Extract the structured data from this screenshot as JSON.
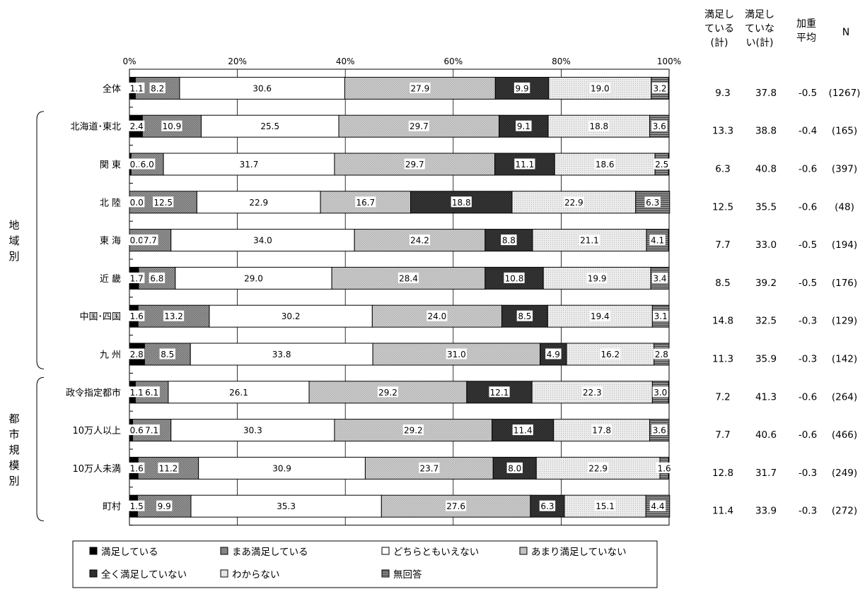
{
  "colors": {
    "s1": "#000000",
    "s2": "#8a8a8a",
    "s3": "#ffffff",
    "s4": "#c8c8c8",
    "s5": "#3c3c3c",
    "s6": "#e6e6e6",
    "s7": "#6e6e6e"
  },
  "chart_data": {
    "type": "bar",
    "orientation": "horizontal",
    "stacked": true,
    "xlim": [
      0,
      100
    ],
    "x_ticks": [
      "0%",
      "20%",
      "40%",
      "60%",
      "80%",
      "100%"
    ],
    "categories": [
      "全体",
      "北海道･東北",
      "関 東",
      "北 陸",
      "東 海",
      "近 畿",
      "中国･四国",
      "九 州",
      "政令指定都市",
      "10万人以上",
      "10万人未満",
      "町村"
    ],
    "series": [
      {
        "name": "満足している",
        "values": [
          1.1,
          2.4,
          0.3,
          0.0,
          0.0,
          1.7,
          1.6,
          2.8,
          1.1,
          0.6,
          1.6,
          1.5
        ]
      },
      {
        "name": "まあ満足している",
        "values": [
          8.2,
          10.9,
          6.0,
          12.5,
          7.7,
          6.8,
          13.2,
          8.5,
          6.1,
          7.1,
          11.2,
          9.9
        ]
      },
      {
        "name": "どちらともいえない",
        "values": [
          30.6,
          25.5,
          31.7,
          22.9,
          34.0,
          29.0,
          30.2,
          33.8,
          26.1,
          30.3,
          30.9,
          35.3
        ]
      },
      {
        "name": "あまり満足していない",
        "values": [
          27.9,
          29.7,
          29.7,
          16.7,
          24.2,
          28.4,
          24.0,
          31.0,
          29.2,
          29.2,
          23.7,
          27.6
        ]
      },
      {
        "name": "全く満足していない",
        "values": [
          9.9,
          9.1,
          11.1,
          18.8,
          8.8,
          10.8,
          8.5,
          4.9,
          12.1,
          11.4,
          8.0,
          6.3
        ]
      },
      {
        "name": "わからない",
        "values": [
          19.0,
          18.8,
          18.6,
          22.9,
          21.1,
          19.9,
          19.4,
          16.2,
          22.3,
          17.8,
          22.9,
          15.1
        ]
      },
      {
        "name": "無回答",
        "values": [
          3.2,
          3.6,
          2.5,
          6.3,
          4.1,
          3.4,
          3.1,
          2.8,
          3.0,
          3.6,
          1.6,
          4.4
        ]
      }
    ],
    "label_text": [
      [
        "1.1",
        "8.2",
        "30.6",
        "27.9",
        "9.9",
        "19.0",
        "3.2"
      ],
      [
        "2.4",
        "10.9",
        "25.5",
        "29.7",
        "9.1",
        "18.8",
        "3.6"
      ],
      [
        "0.3",
        "6.0",
        "31.7",
        "29.7",
        "11.1",
        "18.6",
        "2.5"
      ],
      [
        "0.0",
        "12.5",
        "22.9",
        "16.7",
        "18.8",
        "22.9",
        "6.3"
      ],
      [
        "0.0",
        "7.7",
        "34.0",
        "24.2",
        "8.8",
        "21.1",
        "4.1"
      ],
      [
        "1.7",
        "6.8",
        "29.0",
        "28.4",
        "10.8",
        "19.9",
        "3.4"
      ],
      [
        "1.6",
        "13.2",
        "30.2",
        "24.0",
        "8.5",
        "19.4",
        "3.1"
      ],
      [
        "2.8",
        "8.5",
        "33.8",
        "31.0",
        "4.9",
        "16.2",
        "2.8"
      ],
      [
        "1.1",
        "6.1",
        "26.1",
        "29.2",
        "12.1",
        "22.3",
        "3.0"
      ],
      [
        "0.6",
        "7.1",
        "30.3",
        "29.2",
        "11.4",
        "17.8",
        "3.6"
      ],
      [
        "1.6",
        "11.2",
        "30.9",
        "23.7",
        "8.0",
        "22.9",
        "1.6"
      ],
      [
        "1.5",
        "9.9",
        "35.3",
        "27.6",
        "6.3",
        "15.1",
        "4.4"
      ]
    ],
    "groups": [
      {
        "label": "地域別",
        "categories": [
          "北海道･東北",
          "関 東",
          "北 陸",
          "東 海",
          "近 畿",
          "中国･四国",
          "九 州"
        ]
      },
      {
        "label": "都市規模別",
        "categories": [
          "政令指定都市",
          "10万人以上",
          "10万人未満",
          "町村"
        ]
      }
    ],
    "table": {
      "headers": [
        "満足している(計)",
        "満足していない(計)",
        "加重平均",
        "N"
      ],
      "rows": [
        [
          "9.3",
          "37.8",
          "-0.5",
          "(1267)"
        ],
        [
          "13.3",
          "38.8",
          "-0.4",
          "(165)"
        ],
        [
          "6.3",
          "40.8",
          "-0.6",
          "(397)"
        ],
        [
          "12.5",
          "35.5",
          "-0.6",
          "(48)"
        ],
        [
          "7.7",
          "33.0",
          "-0.5",
          "(194)"
        ],
        [
          "8.5",
          "39.2",
          "-0.5",
          "(176)"
        ],
        [
          "14.8",
          "32.5",
          "-0.3",
          "(129)"
        ],
        [
          "11.3",
          "35.9",
          "-0.3",
          "(142)"
        ],
        [
          "7.2",
          "41.3",
          "-0.6",
          "(264)"
        ],
        [
          "7.7",
          "40.6",
          "-0.6",
          "(466)"
        ],
        [
          "12.8",
          "31.7",
          "-0.3",
          "(249)"
        ],
        [
          "11.4",
          "33.9",
          "-0.3",
          "(272)"
        ]
      ]
    },
    "legend": [
      {
        "marker": "■",
        "label": "満足している"
      },
      {
        "marker": "▩",
        "label": "まあ満足している"
      },
      {
        "marker": "□",
        "label": "どちらともいえない"
      },
      {
        "marker": "▩",
        "label": "あまり満足していない"
      },
      {
        "marker": "■",
        "label": "全く満足していない"
      },
      {
        "marker": "▩",
        "label": "わからない"
      },
      {
        "marker": "▤",
        "label": "無回答"
      }
    ]
  }
}
